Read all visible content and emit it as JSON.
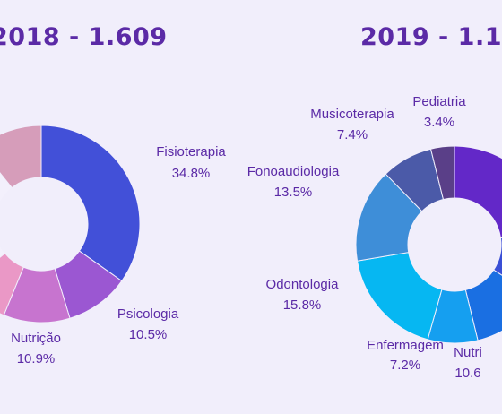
{
  "titles": {
    "t2018": "2018 - 1.609",
    "t2019": "2019 - 1.1"
  },
  "chart_data": [
    {
      "type": "pie",
      "title": "2018 - 1.609",
      "slices": [
        {
          "label": "Fisioterapia",
          "value": 34.8,
          "value_label": "34.8%",
          "color": "#4250d8"
        },
        {
          "label": "Psicologia",
          "value": 10.5,
          "value_label": "10.5%",
          "color": "#9b57d2"
        },
        {
          "label": "Nutrição",
          "value": 10.9,
          "value_label": "10.9%",
          "color": "#c774cf"
        },
        {
          "label": "",
          "value": 8.0,
          "value_label": "",
          "color": "#ea98c6"
        },
        {
          "label": "",
          "value": 25.0,
          "value_label": "",
          "color": "#f3f0fc"
        },
        {
          "label": "",
          "value": 10.8,
          "value_label": "",
          "color": "#d69dba"
        }
      ]
    },
    {
      "type": "pie",
      "title": "2019 - 1.1",
      "slices": [
        {
          "label": "",
          "value": 20.0,
          "value_label": "",
          "color": "#6328c8"
        },
        {
          "label": "",
          "value": 10.0,
          "value_label": "",
          "color": "#3a4fd6"
        },
        {
          "label": "Nutri",
          "value": 10.6,
          "value_label": "10.6",
          "color": "#1a6fe2"
        },
        {
          "label": "Enfermagem",
          "value": 7.2,
          "value_label": "7.2%",
          "color": "#159ff0"
        },
        {
          "label": "Odontologia",
          "value": 15.8,
          "value_label": "15.8%",
          "color": "#06b7f2"
        },
        {
          "label": "Fonoaudiologia",
          "value": 13.5,
          "value_label": "13.5%",
          "color": "#3e8ed8"
        },
        {
          "label": "Musicoterapia",
          "value": 7.4,
          "value_label": "7.4%",
          "color": "#4b5aa8"
        },
        {
          "label": "Pediatria",
          "value": 3.4,
          "value_label": "3.4%",
          "color": "#5a3f88"
        }
      ]
    }
  ]
}
